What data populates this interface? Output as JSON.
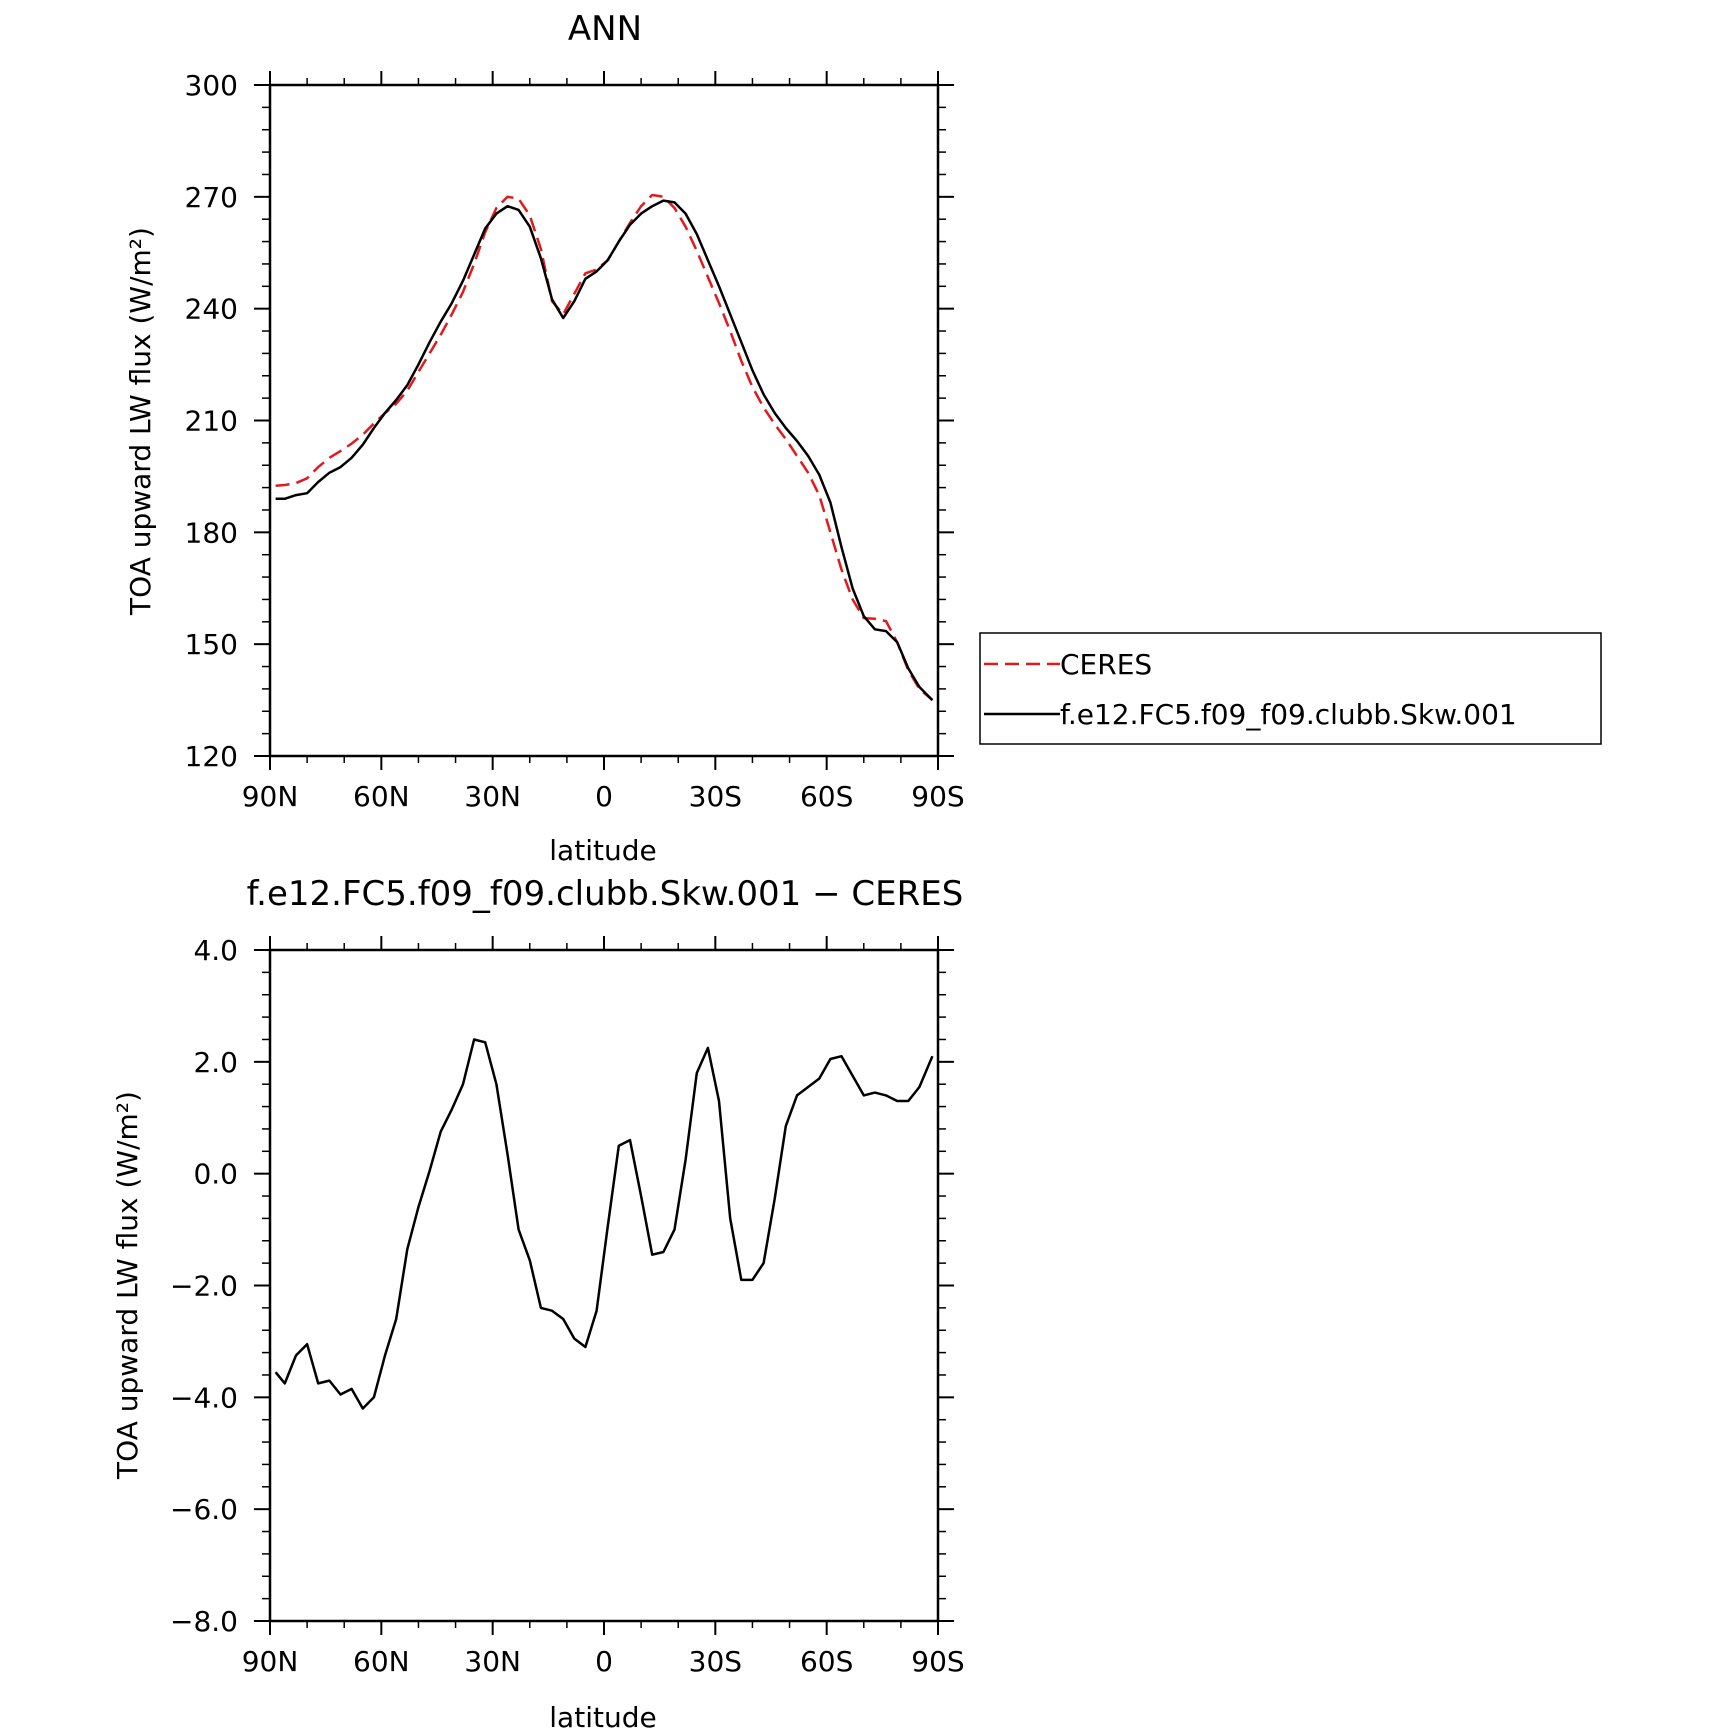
{
  "chart_data": [
    {
      "type": "line",
      "title": "ANN",
      "xlabel": "latitude",
      "ylabel": "TOA upward LW flux (W/m²)",
      "xlim": [
        90,
        -90
      ],
      "ylim": [
        120,
        300
      ],
      "xticks": [
        90,
        60,
        30,
        0,
        -30,
        -60,
        -90
      ],
      "xtick_labels": [
        "90N",
        "60N",
        "30N",
        "0",
        "30S",
        "60S",
        "90S"
      ],
      "yticks": [
        120,
        150,
        180,
        210,
        240,
        270,
        300
      ],
      "ytick_labels": [
        "120",
        "150",
        "180",
        "210",
        "240",
        "270",
        "300"
      ],
      "legend_position": "right",
      "series": [
        {
          "name": "CERES",
          "color": "#e31a1c",
          "dash": "dashed",
          "x": [
            88.5,
            86,
            83,
            80,
            77,
            74,
            71,
            68,
            65,
            62,
            59,
            56,
            53,
            50,
            47,
            44,
            41,
            38,
            35,
            32,
            29,
            26,
            23,
            20,
            17,
            14,
            11,
            8,
            5,
            2,
            -1,
            -4,
            -7,
            -10,
            -13,
            -16,
            -19,
            -22,
            -25,
            -28,
            -31,
            -34,
            -37,
            -40,
            -43,
            -46,
            -49,
            -52,
            -55,
            -58,
            -61,
            -64,
            -67,
            -70,
            -73,
            -76,
            -79,
            -82,
            -85,
            -88.5
          ],
          "y": [
            192.5,
            192.7,
            193.2,
            194.5,
            197.5,
            200.0,
            201.8,
            203.8,
            206.2,
            209.2,
            212.0,
            214.5,
            218.0,
            223.0,
            228.0,
            233.0,
            238.5,
            244.5,
            252.0,
            260.5,
            267.0,
            270.0,
            269.5,
            265.0,
            256.0,
            242.0,
            238.5,
            244.0,
            249.5,
            250.5,
            253.0,
            258.0,
            263.0,
            267.5,
            270.5,
            270.0,
            267.0,
            262.0,
            255.5,
            248.5,
            241.5,
            234.0,
            226.0,
            219.0,
            213.5,
            209.0,
            205.0,
            200.5,
            196.0,
            190.0,
            180.0,
            170.0,
            162.0,
            157.0,
            156.8,
            156.2,
            150.5,
            143.0,
            138.0,
            135.0
          ]
        },
        {
          "name": "f.e12.FC5.f09_f09.clubb.Skw.001",
          "color": "#000000",
          "dash": "solid",
          "x": [
            88.5,
            86,
            83,
            80,
            77,
            74,
            71,
            68,
            65,
            62,
            59,
            56,
            53,
            50,
            47,
            44,
            41,
            38,
            35,
            32,
            29,
            26,
            23,
            20,
            17,
            14,
            11,
            8,
            5,
            2,
            -1,
            -4,
            -7,
            -10,
            -13,
            -16,
            -19,
            -22,
            -25,
            -28,
            -31,
            -34,
            -37,
            -40,
            -43,
            -46,
            -49,
            -52,
            -55,
            -58,
            -61,
            -64,
            -67,
            -70,
            -73,
            -76,
            -79,
            -82,
            -85,
            -88.5
          ],
          "y": [
            189.0,
            189.0,
            190.0,
            190.5,
            193.5,
            196.0,
            197.5,
            200.0,
            203.5,
            208.0,
            212.0,
            215.5,
            219.5,
            225.0,
            231.0,
            236.5,
            241.5,
            247.5,
            254.5,
            261.5,
            265.5,
            267.5,
            266.5,
            262.0,
            253.5,
            242.5,
            237.5,
            242.0,
            248.0,
            250.0,
            253.0,
            258.0,
            262.5,
            265.5,
            267.5,
            269.0,
            268.5,
            265.5,
            260.0,
            253.0,
            246.0,
            238.5,
            231.0,
            223.5,
            217.0,
            212.0,
            208.0,
            204.5,
            200.5,
            195.5,
            188.0,
            176.0,
            165.0,
            157.5,
            154.0,
            153.5,
            150.5,
            143.5,
            138.5,
            135.0
          ]
        }
      ]
    },
    {
      "type": "line",
      "title": "f.e12.FC5.f09_f09.clubb.Skw.001 − CERES",
      "xlabel": "latitude",
      "ylabel": "TOA upward LW flux (W/m²)",
      "xlim": [
        90,
        -90
      ],
      "ylim": [
        -8,
        4
      ],
      "xticks": [
        90,
        60,
        30,
        0,
        -30,
        -60,
        -90
      ],
      "xtick_labels": [
        "90N",
        "60N",
        "30N",
        "0",
        "30S",
        "60S",
        "90S"
      ],
      "yticks": [
        -8,
        -6,
        -4,
        -2,
        0,
        2,
        4
      ],
      "ytick_labels": [
        "−8.0",
        "−6.0",
        "−4.0",
        "−2.0",
        "0.0",
        "2.0",
        "4.0"
      ],
      "series": [
        {
          "color": "#000000",
          "dash": "solid",
          "x": [
            88.5,
            86,
            83,
            80,
            77,
            74,
            71,
            68,
            65,
            62,
            59,
            56,
            53,
            50,
            47,
            44,
            41,
            38,
            35,
            32,
            29,
            26,
            23,
            20,
            17,
            14,
            11,
            8,
            5,
            2,
            -1,
            -4,
            -7,
            -10,
            -13,
            -16,
            -19,
            -22,
            -25,
            -28,
            -31,
            -34,
            -37,
            -40,
            -43,
            -46,
            -49,
            -52,
            -55,
            -58,
            -61,
            -64,
            -67,
            -70,
            -73,
            -76,
            -79,
            -82,
            -85,
            -88.5
          ],
          "y": [
            -3.55,
            -3.75,
            -3.25,
            -3.05,
            -3.75,
            -3.7,
            -3.95,
            -3.85,
            -4.2,
            -4.0,
            -3.25,
            -2.6,
            -1.35,
            -0.6,
            0.05,
            0.75,
            1.15,
            1.6,
            2.4,
            2.35,
            1.6,
            0.35,
            -1.0,
            -1.55,
            -2.4,
            -2.45,
            -2.6,
            -2.95,
            -3.1,
            -2.45,
            -0.95,
            0.5,
            0.6,
            -0.4,
            -1.45,
            -1.4,
            -1.0,
            0.25,
            1.8,
            2.25,
            1.3,
            -0.8,
            -1.9,
            -1.9,
            -1.6,
            -0.45,
            0.85,
            1.4,
            1.55,
            1.7,
            2.05,
            2.1,
            1.75,
            1.4,
            1.45,
            1.4,
            1.3,
            1.3,
            1.55,
            2.1
          ]
        }
      ]
    }
  ]
}
